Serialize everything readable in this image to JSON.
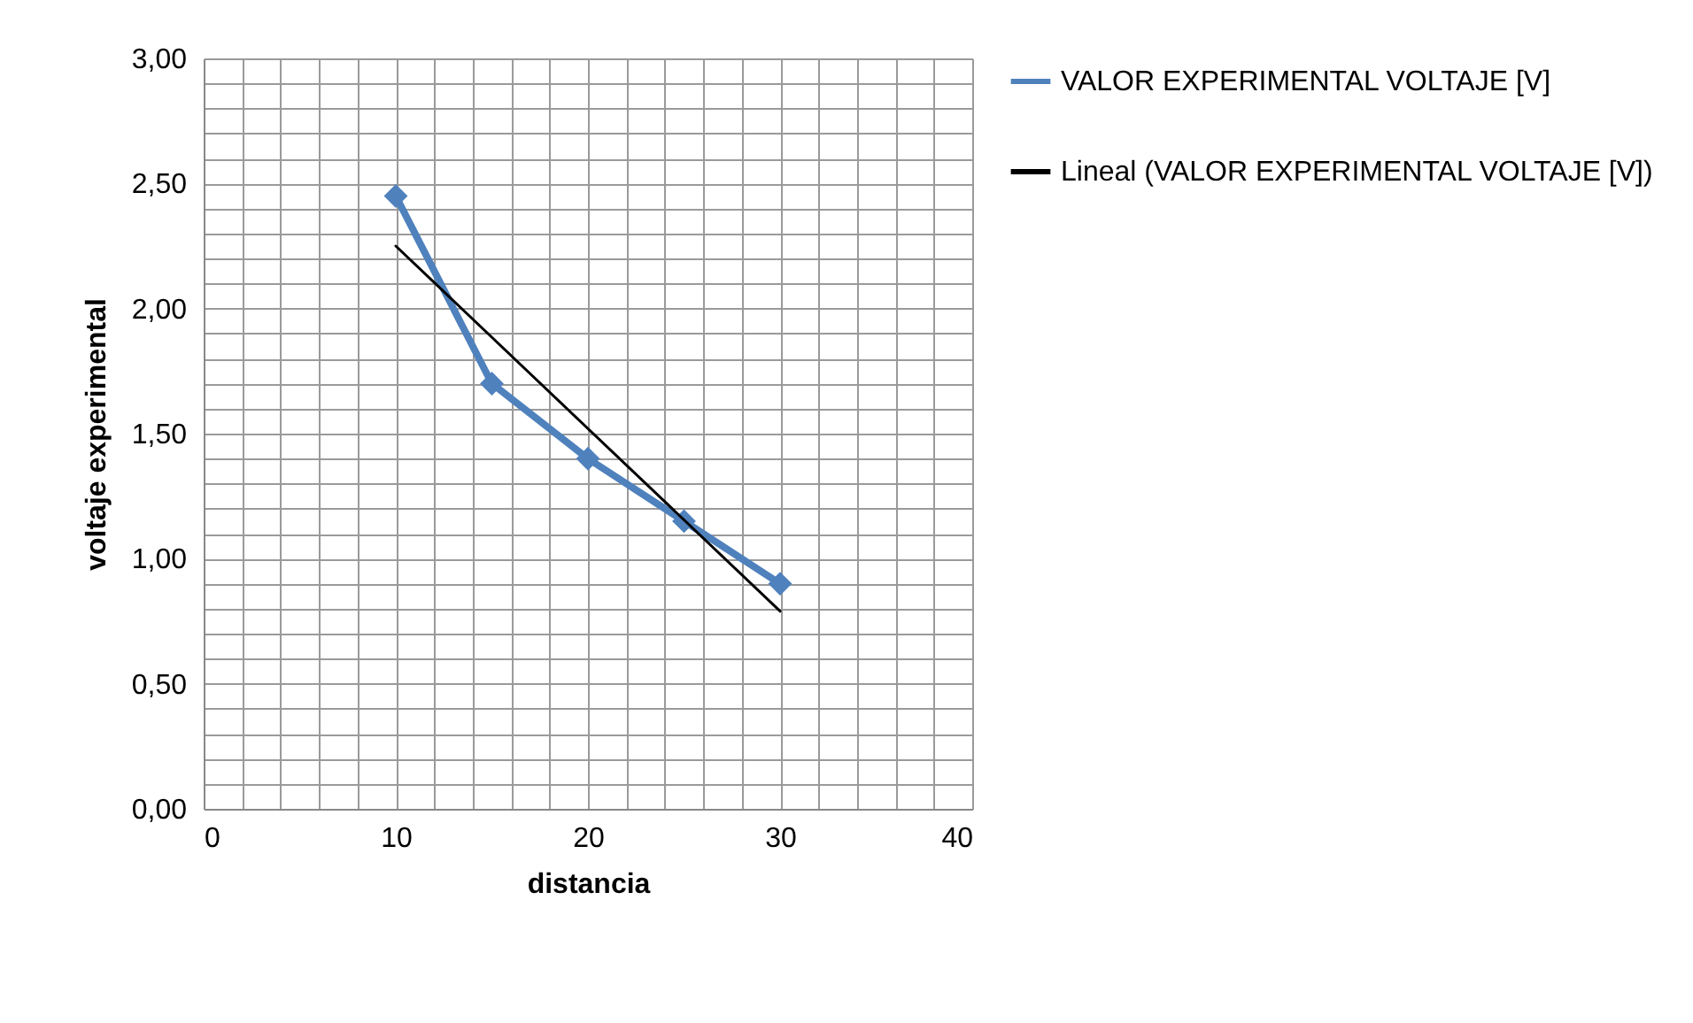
{
  "chart_data": {
    "type": "line",
    "xlabel": "distancia",
    "ylabel": "voltaje experimental",
    "xlim": [
      0,
      40
    ],
    "ylim": [
      0,
      3
    ],
    "xticks": [
      0,
      {
        "value": 2,
        "label": null
      },
      {
        "value": 4,
        "label": null
      },
      {
        "value": 6,
        "label": null
      },
      {
        "value": 8,
        "label": null
      },
      10,
      {
        "value": 12,
        "label": null
      },
      {
        "value": 14,
        "label": null
      },
      {
        "value": 16,
        "label": null
      },
      {
        "value": 18,
        "label": null
      },
      20,
      {
        "value": 22,
        "label": null
      },
      {
        "value": 24,
        "label": null
      },
      {
        "value": 26,
        "label": null
      },
      {
        "value": 28,
        "label": null
      },
      30,
      {
        "value": 32,
        "label": null
      },
      {
        "value": 34,
        "label": null
      },
      {
        "value": 36,
        "label": null
      },
      {
        "value": 38,
        "label": null
      },
      40
    ],
    "yticks": [
      {
        "value": 0,
        "label": "0,00"
      },
      {
        "value": 0.1,
        "label": null
      },
      {
        "value": 0.2,
        "label": null
      },
      {
        "value": 0.3,
        "label": null
      },
      {
        "value": 0.4,
        "label": null
      },
      {
        "value": 0.5,
        "label": "0,50"
      },
      {
        "value": 0.6,
        "label": null
      },
      {
        "value": 0.7,
        "label": null
      },
      {
        "value": 0.8,
        "label": null
      },
      {
        "value": 0.9,
        "label": null
      },
      {
        "value": 1,
        "label": "1,00"
      },
      {
        "value": 1.1,
        "label": null
      },
      {
        "value": 1.2,
        "label": null
      },
      {
        "value": 1.3,
        "label": null
      },
      {
        "value": 1.4,
        "label": null
      },
      {
        "value": 1.5,
        "label": "1,50"
      },
      {
        "value": 1.6,
        "label": null
      },
      {
        "value": 1.7,
        "label": null
      },
      {
        "value": 1.8,
        "label": null
      },
      {
        "value": 1.9,
        "label": null
      },
      {
        "value": 2,
        "label": "2,00"
      },
      {
        "value": 2.1,
        "label": null
      },
      {
        "value": 2.2,
        "label": null
      },
      {
        "value": 2.3,
        "label": null
      },
      {
        "value": 2.4,
        "label": null
      },
      {
        "value": 2.5,
        "label": "2,50"
      },
      {
        "value": 2.6,
        "label": null
      },
      {
        "value": 2.7,
        "label": null
      },
      {
        "value": 2.8,
        "label": null
      },
      {
        "value": 2.9,
        "label": null
      },
      {
        "value": 3,
        "label": "3,00"
      }
    ],
    "grid": true,
    "legend": "right",
    "series": [
      {
        "name": "VALOR EXPERIMENTAL VOLTAJE [V]",
        "color": "#4f81bd",
        "marker": "diamond",
        "x": [
          10,
          15,
          20,
          25,
          30
        ],
        "values": [
          2.45,
          1.7,
          1.4,
          1.15,
          0.9
        ]
      },
      {
        "name": "Lineal (VALOR EXPERIMENTAL VOLTAJE [V])",
        "color": "#000000",
        "marker": "none",
        "x": [
          10,
          30
        ],
        "values": [
          2.25,
          0.79
        ]
      }
    ]
  }
}
